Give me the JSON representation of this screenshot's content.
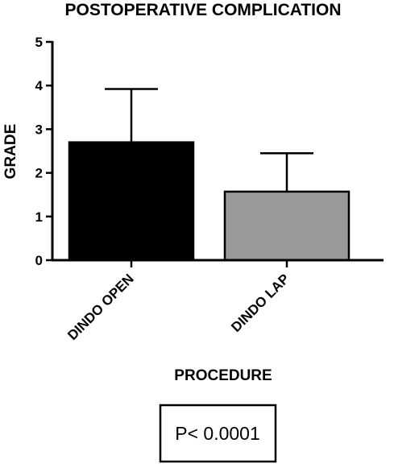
{
  "chart_data": {
    "type": "bar",
    "title": "POSTOPERATIVE COMPLICATION",
    "xlabel": "PROCEDURE",
    "ylabel": "GRADE",
    "ylim": [
      0,
      5
    ],
    "yticks": [
      0,
      1,
      2,
      3,
      4,
      5
    ],
    "categories": [
      "DINDO OPEN",
      "DINDO LAP"
    ],
    "values": [
      2.7,
      1.57
    ],
    "error_upper": [
      3.92,
      2.45
    ],
    "bar_colors": [
      "#000000",
      "#999999"
    ],
    "grid": false,
    "legend": "none",
    "annotation": "P< 0.0001"
  }
}
